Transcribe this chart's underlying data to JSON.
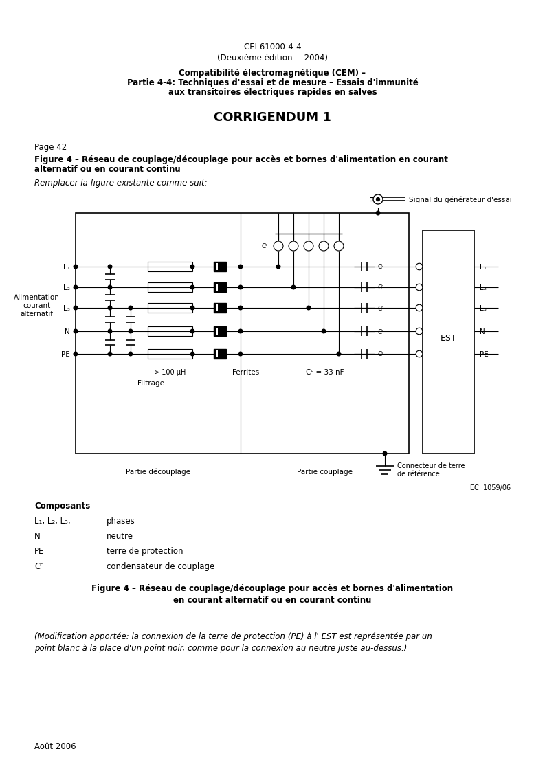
{
  "page_title1": "CEI 61000-4-4",
  "page_title2": "(Deuxième édition  – 2004)",
  "subtitle_bold1": "Compatibilité électromagnétique (CEM) –",
  "subtitle_bold2": "Partie 4-4: Techniques d'essai et de mesure – Essais d'immunité",
  "subtitle_bold3": "aux transitoires électriques rapides en salves",
  "corrigendum": "CORRIGENDUM 1",
  "page_label": "Page 42",
  "fig_cap_line1": "Figure 4 – Réseau de couplage/découplage pour accès et bornes d'alimentation en courant",
  "fig_cap_line2": "alternatif ou en courant continu",
  "replace_text": "Remplacer la figure existante comme suit:",
  "composants_title": "Composants",
  "fig_caption_bottom1": "Figure 4 – Réseau de couplage/découplage pour accès et bornes d'alimentation",
  "fig_caption_bottom2": "en courant alternatif ou en courant continu",
  "modification_line1": "(Modification apportée: la connexion de la terre de protection (PE) à l' EST est représentée par un",
  "modification_line2": "point blanc à la place d'un point noir, comme pour la connexion au neutre juste au-dessus.)",
  "footer": "Août 2006",
  "bg_color": "#ffffff"
}
